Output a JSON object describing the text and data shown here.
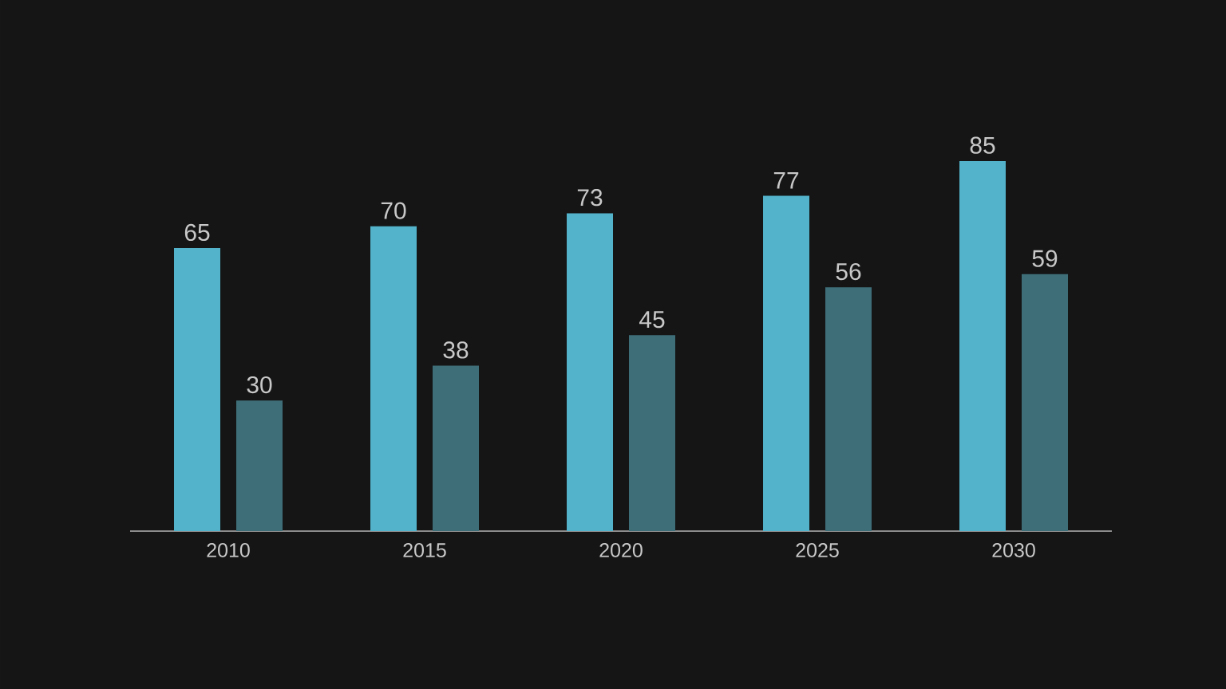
{
  "chart_data": {
    "type": "bar",
    "categories": [
      "2010",
      "2015",
      "2020",
      "2025",
      "2030"
    ],
    "series": [
      {
        "color": "#52b3cb",
        "values": [
          65,
          70,
          73,
          77,
          85
        ]
      },
      {
        "color": "#3e6e78",
        "values": [
          30,
          38,
          45,
          56,
          59
        ]
      }
    ],
    "data_labels": true,
    "tick_labels": "x"
  }
}
